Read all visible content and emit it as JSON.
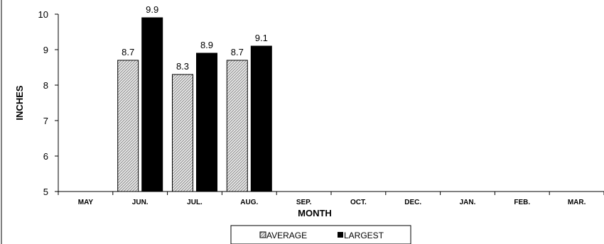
{
  "chart_data": {
    "type": "bar",
    "title": "",
    "xlabel": "MONTH",
    "ylabel": "INCHES",
    "categories": [
      "MAY",
      "JUN.",
      "JUL.",
      "AUG.",
      "SEP.",
      "OCT.",
      "DEC.",
      "JAN.",
      "FEB.",
      "MAR."
    ],
    "series": [
      {
        "name": "AVERAGE",
        "values": [
          null,
          8.7,
          8.3,
          8.7,
          null,
          null,
          null,
          null,
          null,
          null
        ],
        "color": "#d4d4d4",
        "pattern": "diagonal-hatch"
      },
      {
        "name": "LARGEST",
        "values": [
          null,
          9.9,
          8.9,
          9.1,
          null,
          null,
          null,
          null,
          null,
          null
        ],
        "color": "#000000"
      }
    ],
    "ylim": [
      5,
      10
    ],
    "yticks": [
      5,
      6,
      7,
      8,
      9,
      10
    ],
    "grid": false,
    "legend_position": "bottom-center"
  }
}
